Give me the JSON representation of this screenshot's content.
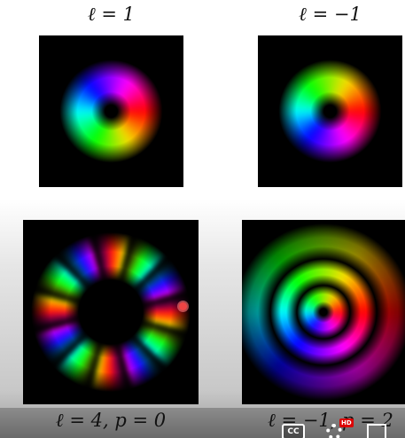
{
  "panels": [
    {
      "label": "ℓ = 1"
    },
    {
      "label": "ℓ = −1"
    },
    {
      "label": "ℓ = 4, p = 0"
    },
    {
      "label": "ℓ = −1, p = 2"
    }
  ],
  "controls": {
    "captions": "CC",
    "quality": "HD"
  }
}
